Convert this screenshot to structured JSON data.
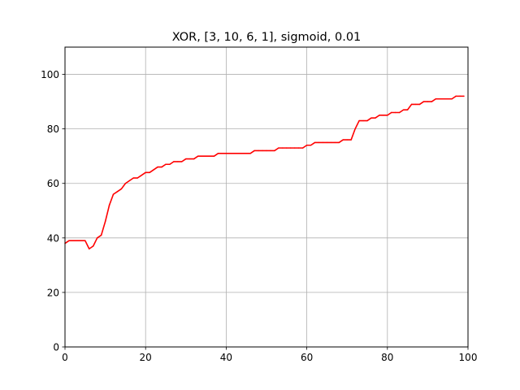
{
  "chart_data": {
    "type": "line",
    "title": "XOR, [3, 10, 6, 1], sigmoid, 0.01",
    "xlabel": "",
    "ylabel": "",
    "xlim": [
      0,
      100
    ],
    "ylim": [
      0,
      110
    ],
    "x_ticks": [
      0,
      20,
      40,
      60,
      80,
      100
    ],
    "y_ticks": [
      0,
      20,
      40,
      60,
      80,
      100
    ],
    "grid": true,
    "line_color": "#ff0000",
    "series": [
      {
        "x": [
          0,
          1,
          2,
          3,
          4,
          5,
          6,
          7,
          8,
          9,
          10,
          11,
          12,
          13,
          14,
          15,
          16,
          17,
          18,
          19,
          20,
          21,
          22,
          23,
          24,
          25,
          26,
          27,
          28,
          29,
          30,
          31,
          32,
          33,
          34,
          35,
          36,
          37,
          38,
          39,
          40,
          41,
          42,
          43,
          44,
          45,
          46,
          47,
          48,
          49,
          50,
          51,
          52,
          53,
          54,
          55,
          56,
          57,
          58,
          59,
          60,
          61,
          62,
          63,
          64,
          65,
          66,
          67,
          68,
          69,
          70,
          71,
          72,
          73,
          74,
          75,
          76,
          77,
          78,
          79,
          80,
          81,
          82,
          83,
          84,
          85,
          86,
          87,
          88,
          89,
          90,
          91,
          92,
          93,
          94,
          95,
          96,
          97,
          98,
          99
        ],
        "values": [
          38,
          39,
          39,
          39,
          39,
          39,
          36,
          37,
          40,
          41,
          46,
          52,
          56,
          57,
          58,
          60,
          61,
          62,
          62,
          63,
          64,
          64,
          65,
          66,
          66,
          67,
          67,
          68,
          68,
          68,
          69,
          69,
          69,
          70,
          70,
          70,
          70,
          70,
          71,
          71,
          71,
          71,
          71,
          71,
          71,
          71,
          71,
          72,
          72,
          72,
          72,
          72,
          72,
          73,
          73,
          73,
          73,
          73,
          73,
          73,
          74,
          74,
          75,
          75,
          75,
          75,
          75,
          75,
          75,
          76,
          76,
          76,
          80,
          83,
          83,
          83,
          84,
          84,
          85,
          85,
          85,
          86,
          86,
          86,
          87,
          87,
          89,
          89,
          89,
          90,
          90,
          90,
          91,
          91,
          91,
          91,
          91,
          92,
          92,
          92
        ]
      }
    ]
  }
}
